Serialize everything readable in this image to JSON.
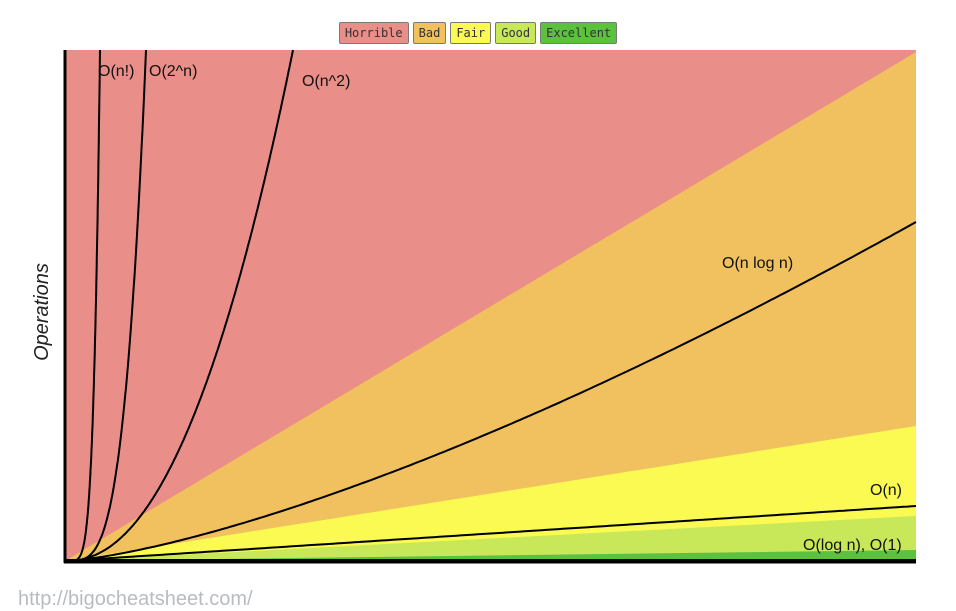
{
  "legend": [
    {
      "label": "Horrible",
      "color": "#e98e89"
    },
    {
      "label": "Bad",
      "color": "#f0c15e"
    },
    {
      "label": "Fair",
      "color": "#fafa52"
    },
    {
      "label": "Good",
      "color": "#c8e85a"
    },
    {
      "label": "Excellent",
      "color": "#5ac23c"
    }
  ],
  "footer": {
    "url": "http://bigocheatsheet.com/"
  },
  "chart_data": {
    "type": "line",
    "title": "",
    "ylabel": "Operations",
    "xlabel": "",
    "grid": false,
    "legend_position": "top-center",
    "regions": [
      {
        "name": "Horrible",
        "color": "#e98e89"
      },
      {
        "name": "Bad",
        "color": "#f0c15e"
      },
      {
        "name": "Fair",
        "color": "#fafa52"
      },
      {
        "name": "Good",
        "color": "#c8e85a"
      },
      {
        "name": "Excellent",
        "color": "#5ac23c"
      }
    ],
    "series": [
      {
        "name": "O(n!)"
      },
      {
        "name": "O(2^n)"
      },
      {
        "name": "O(n^2)"
      },
      {
        "name": "O(n log n)"
      },
      {
        "name": "O(n)"
      },
      {
        "name": "O(log n), O(1)"
      }
    ]
  }
}
